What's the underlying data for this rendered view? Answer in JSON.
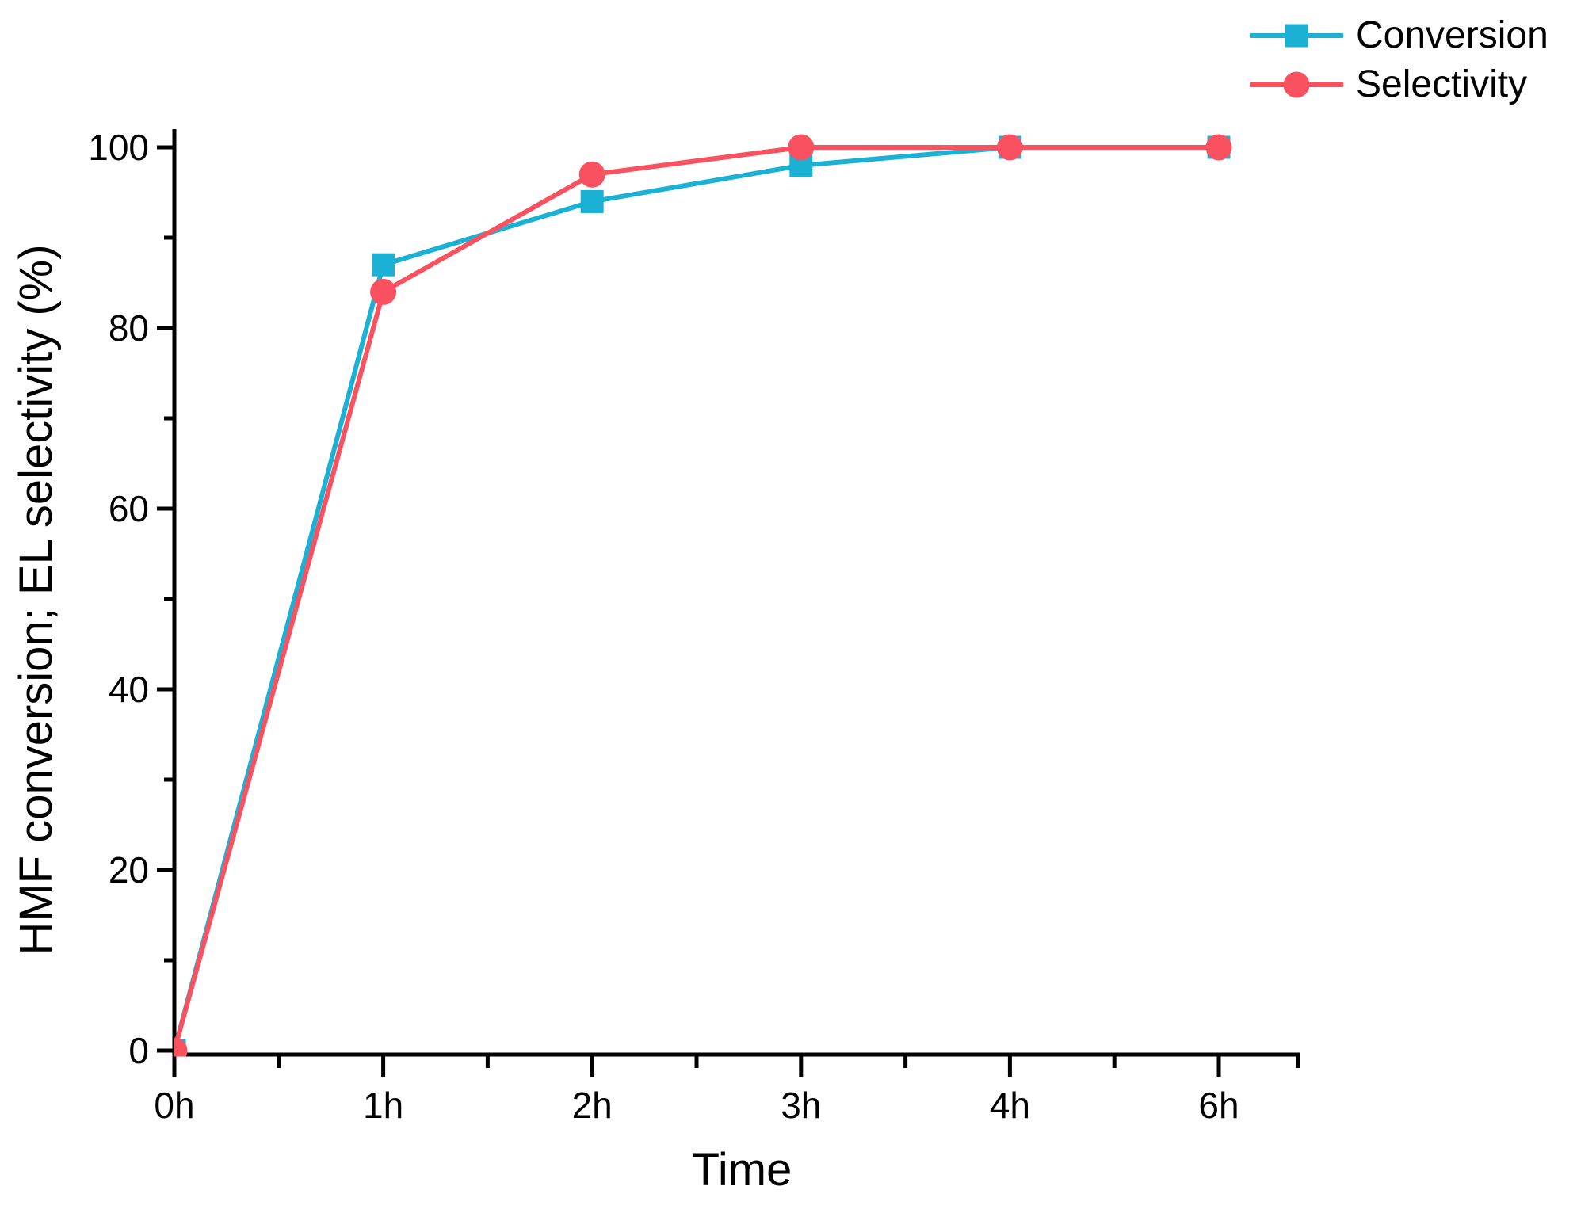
{
  "chart_data": {
    "type": "line",
    "title": "",
    "categories": [
      "0h",
      "1h",
      "2h",
      "3h",
      "4h",
      "6h"
    ],
    "series": [
      {
        "name": "Conversion",
        "marker": "square",
        "color": "#1BB1D4",
        "values": [
          0,
          87,
          94,
          98,
          100,
          100
        ]
      },
      {
        "name": "Selectivity",
        "marker": "circle",
        "color": "#F9515F",
        "values": [
          0,
          84,
          97,
          100,
          100,
          100
        ]
      }
    ],
    "xlabel": "Time",
    "ylabel": "HMF conversion; EL selectivity (%)",
    "ylim": [
      0,
      100
    ],
    "y_major_ticks": [
      0,
      20,
      40,
      60,
      80,
      100
    ],
    "y_tick_labels": [
      "0",
      "20",
      "40",
      "60",
      "80",
      "100"
    ],
    "y_minor_tick_step": 10,
    "x_minor_ticks": "midpoints-between-categories",
    "grid": false,
    "legend_position": "top-right",
    "axis_color": "#000000",
    "background_color": "#ffffff"
  }
}
